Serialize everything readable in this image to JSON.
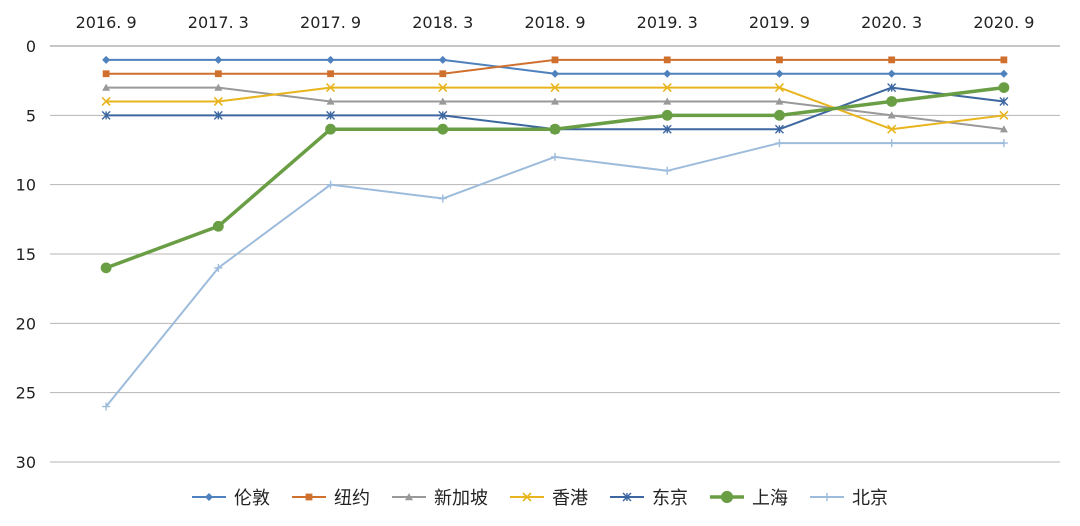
{
  "chart_data": {
    "type": "line",
    "title": "",
    "xlabel": "",
    "ylabel": "",
    "ylim": [
      0,
      30
    ],
    "y_inverted": true,
    "y_ticks": [
      0,
      5,
      10,
      15,
      20,
      25,
      30
    ],
    "x_axis_position": "top",
    "grid": "horizontal",
    "legend_position": "bottom",
    "categories": [
      "2016. 9",
      "2017. 3",
      "2017. 9",
      "2018. 3",
      "2018. 9",
      "2019. 3",
      "2019. 9",
      "2020. 3",
      "2020. 9"
    ],
    "series": [
      {
        "name": "伦敦",
        "color": "#4e81bd",
        "marker": "diamond",
        "values": [
          1,
          1,
          1,
          1,
          2,
          2,
          2,
          2,
          2
        ]
      },
      {
        "name": "纽约",
        "color": "#d0702f",
        "marker": "square",
        "values": [
          2,
          2,
          2,
          2,
          1,
          1,
          1,
          1,
          1
        ]
      },
      {
        "name": "新加坡",
        "color": "#999999",
        "marker": "triangle",
        "values": [
          3,
          3,
          4,
          4,
          4,
          4,
          4,
          5,
          6
        ]
      },
      {
        "name": "香港",
        "color": "#e8b51f",
        "marker": "x",
        "values": [
          4,
          4,
          3,
          3,
          3,
          3,
          3,
          6,
          5
        ]
      },
      {
        "name": "东京",
        "color": "#3d67a0",
        "marker": "star",
        "values": [
          5,
          5,
          5,
          5,
          6,
          6,
          6,
          3,
          4
        ]
      },
      {
        "name": "上海",
        "color": "#6a9e45",
        "marker": "circle",
        "values": [
          16,
          13,
          6,
          6,
          6,
          5,
          5,
          4,
          3
        ]
      },
      {
        "name": "北京",
        "color": "#9dbcdc",
        "marker": "plus",
        "values": [
          26,
          16,
          10,
          11,
          8,
          9,
          7,
          7,
          7
        ]
      }
    ]
  }
}
